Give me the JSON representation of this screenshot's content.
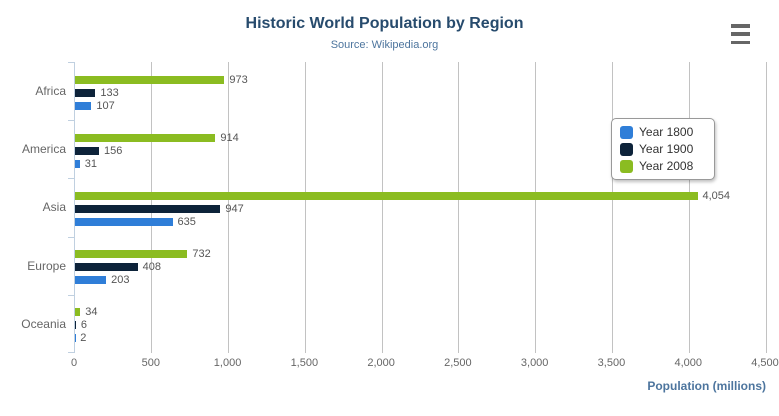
{
  "chart_data": {
    "type": "bar",
    "title": "Historic World Population by Region",
    "subtitle": "Source: Wikipedia.org",
    "categories": [
      "Africa",
      "America",
      "Asia",
      "Europe",
      "Oceania"
    ],
    "series": [
      {
        "name": "Year 1800",
        "color": "#2f7ed8",
        "values": [
          107,
          31,
          635,
          203,
          2
        ]
      },
      {
        "name": "Year 1900",
        "color": "#0d233a",
        "values": [
          133,
          156,
          947,
          408,
          6
        ]
      },
      {
        "name": "Year 2008",
        "color": "#8bbc21",
        "values": [
          973,
          914,
          4054,
          732,
          34
        ]
      }
    ],
    "bar_order_top_to_bottom": [
      "Year 2008",
      "Year 1900",
      "Year 1800"
    ],
    "xlabel": "Population (millions)",
    "xlim": [
      0,
      4500
    ],
    "xticks": [
      0,
      500,
      1000,
      1500,
      2000,
      2500,
      3000,
      3500,
      4000,
      4500
    ],
    "grid": true,
    "legend_position": "right-inside",
    "colors": {
      "title": "#274b6d",
      "subtitle": "#4d759e",
      "axis_line": "#C0D0E0",
      "gridline": "#c2c2c2",
      "labels": "#666666"
    }
  },
  "export_menu": {
    "tooltip": "Chart context menu"
  }
}
